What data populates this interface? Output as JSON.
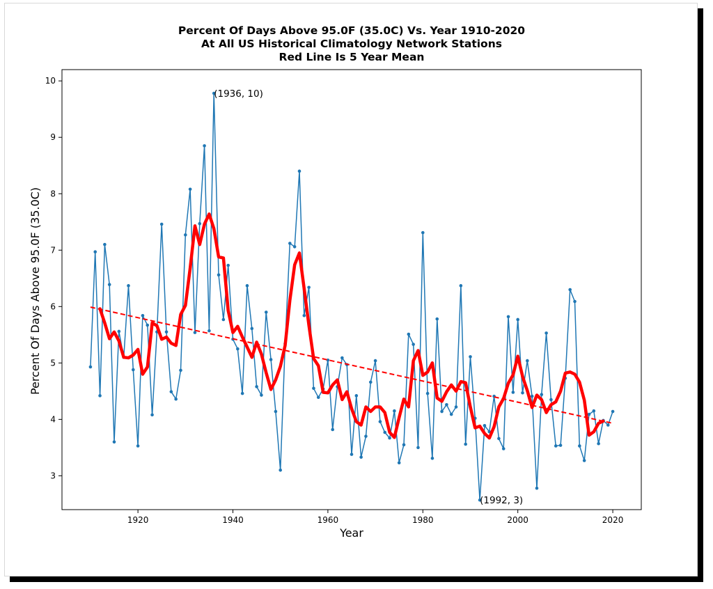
{
  "chart_data": {
    "type": "line",
    "title_lines": [
      "Percent Of Days Above 95.0F (35.0C) Vs. Year 1910-2020",
      "At All US Historical Climatology Network Stations",
      "Red Line Is 5 Year Mean"
    ],
    "xlabel": "Year",
    "ylabel": "Percent Of Days Above 95.0F (35.0C)",
    "xlim": [
      1904,
      2026
    ],
    "ylim": [
      2.4,
      10.2
    ],
    "x_ticks": [
      "1920",
      "1940",
      "1960",
      "1980",
      "2000",
      "2020"
    ],
    "y_ticks": [
      "3",
      "4",
      "5",
      "6",
      "7",
      "8",
      "9",
      "10"
    ],
    "grid": false,
    "colors": {
      "annual": "#1f77b4",
      "mean": "#ff0000",
      "trend": "#ff0000"
    },
    "series": [
      {
        "style": "line-with-markers",
        "x": [
          1910,
          1911,
          1912,
          1913,
          1914,
          1915,
          1916,
          1917,
          1918,
          1919,
          1920,
          1921,
          1922,
          1923,
          1924,
          1925,
          1926,
          1927,
          1928,
          1929,
          1930,
          1931,
          1932,
          1933,
          1934,
          1935,
          1936,
          1937,
          1938,
          1939,
          1940,
          1941,
          1942,
          1943,
          1944,
          1945,
          1946,
          1947,
          1948,
          1949,
          1950,
          1951,
          1952,
          1953,
          1954,
          1955,
          1956,
          1957,
          1958,
          1959,
          1960,
          1961,
          1962,
          1963,
          1964,
          1965,
          1966,
          1967,
          1968,
          1969,
          1970,
          1971,
          1972,
          1973,
          1974,
          1975,
          1976,
          1977,
          1978,
          1979,
          1980,
          1981,
          1982,
          1983,
          1984,
          1985,
          1986,
          1987,
          1988,
          1989,
          1990,
          1991,
          1992,
          1993,
          1994,
          1995,
          1996,
          1997,
          1998,
          1999,
          2000,
          2001,
          2002,
          2003,
          2004,
          2005,
          2006,
          2007,
          2008,
          2009,
          2010,
          2011,
          2012,
          2013,
          2014,
          2015,
          2016,
          2017,
          2018,
          2019,
          2020
        ],
        "y": [
          4.93,
          6.97,
          4.42,
          7.1,
          6.39,
          3.6,
          5.56,
          5.1,
          6.37,
          4.88,
          3.53,
          5.84,
          5.67,
          4.08,
          5.55,
          7.46,
          5.55,
          4.49,
          4.36,
          4.87,
          7.27,
          8.08,
          5.54,
          7.47,
          8.85,
          5.57,
          9.78,
          6.56,
          5.77,
          6.73,
          5.42,
          5.25,
          4.46,
          6.37,
          5.61,
          4.58,
          4.43,
          5.9,
          5.06,
          4.14,
          3.1,
          5.34,
          7.12,
          7.06,
          8.4,
          5.84,
          6.34,
          4.55,
          4.39,
          4.54,
          5.05,
          3.82,
          4.58,
          5.09,
          4.97,
          3.38,
          4.42,
          3.33,
          3.7,
          4.66,
          5.04,
          3.96,
          3.77,
          3.67,
          4.15,
          3.23,
          3.55,
          5.51,
          5.33,
          3.5,
          7.31,
          4.46,
          3.31,
          5.78,
          4.14,
          4.26,
          4.09,
          4.22,
          6.37,
          3.56,
          5.11,
          4.02,
          2.57,
          3.89,
          3.78,
          4.41,
          3.66,
          3.48,
          5.82,
          4.48,
          5.77,
          4.47,
          5.04,
          4.41,
          2.78,
          4.44,
          5.53,
          4.35,
          3.53,
          3.54,
          4.73,
          6.3,
          6.09,
          3.53,
          3.27,
          4.09,
          4.15,
          3.57,
          3.98,
          3.9,
          4.14
        ]
      },
      {
        "style": "thick-line",
        "x": [
          1912,
          1913,
          1914,
          1915,
          1916,
          1917,
          1918,
          1919,
          1920,
          1921,
          1922,
          1923,
          1924,
          1925,
          1926,
          1927,
          1928,
          1929,
          1930,
          1931,
          1932,
          1933,
          1934,
          1935,
          1936,
          1937,
          1938,
          1939,
          1940,
          1941,
          1942,
          1943,
          1944,
          1945,
          1946,
          1947,
          1948,
          1949,
          1950,
          1951,
          1952,
          1953,
          1954,
          1955,
          1956,
          1957,
          1958,
          1959,
          1960,
          1961,
          1962,
          1963,
          1964,
          1965,
          1966,
          1967,
          1968,
          1969,
          1970,
          1971,
          1972,
          1973,
          1974,
          1975,
          1976,
          1977,
          1978,
          1979,
          1980,
          1981,
          1982,
          1983,
          1984,
          1985,
          1986,
          1987,
          1988,
          1989,
          1990,
          1991,
          1992,
          1993,
          1994,
          1995,
          1996,
          1997,
          1998,
          1999,
          2000,
          2001,
          2002,
          2003,
          2004,
          2005,
          2006,
          2007,
          2008,
          2009,
          2010,
          2011,
          2012,
          2013,
          2014,
          2015,
          2016,
          2017,
          2018
        ],
        "y": [
          5.96,
          5.71,
          5.43,
          5.55,
          5.39,
          5.1,
          5.09,
          5.14,
          5.24,
          4.8,
          4.93,
          5.71,
          5.66,
          5.42,
          5.46,
          5.35,
          5.31,
          5.86,
          6.02,
          6.68,
          7.43,
          7.1,
          7.46,
          7.64,
          7.38,
          6.88,
          6.86,
          5.93,
          5.54,
          5.65,
          5.46,
          5.28,
          5.1,
          5.37,
          5.16,
          4.83,
          4.53,
          4.7,
          4.94,
          5.31,
          6.11,
          6.74,
          6.95,
          6.32,
          5.67,
          5.08,
          4.95,
          4.48,
          4.47,
          4.61,
          4.7,
          4.35,
          4.49,
          4.19,
          3.96,
          3.9,
          4.22,
          4.14,
          4.22,
          4.22,
          4.12,
          3.77,
          3.68,
          4.03,
          4.36,
          4.22,
          5.04,
          5.22,
          4.78,
          4.84,
          5.0,
          4.38,
          4.32,
          4.49,
          4.61,
          4.5,
          4.67,
          4.65,
          4.22,
          3.85,
          3.88,
          3.75,
          3.67,
          3.87,
          4.22,
          4.37,
          4.64,
          4.79,
          5.12,
          4.76,
          4.51,
          4.21,
          4.43,
          4.35,
          4.12,
          4.26,
          4.31,
          4.5,
          4.82,
          4.84,
          4.8,
          4.66,
          4.34,
          3.72,
          3.78,
          3.93,
          3.97
        ]
      },
      {
        "style": "dashed-line",
        "x": [
          1910,
          2020
        ],
        "y": [
          5.99,
          3.93
        ]
      }
    ],
    "annotations": [
      {
        "text": "(1936, 10)",
        "x": 1936,
        "y": 9.78
      },
      {
        "text": "(1992, 3)",
        "x": 1992,
        "y": 2.57
      }
    ]
  }
}
